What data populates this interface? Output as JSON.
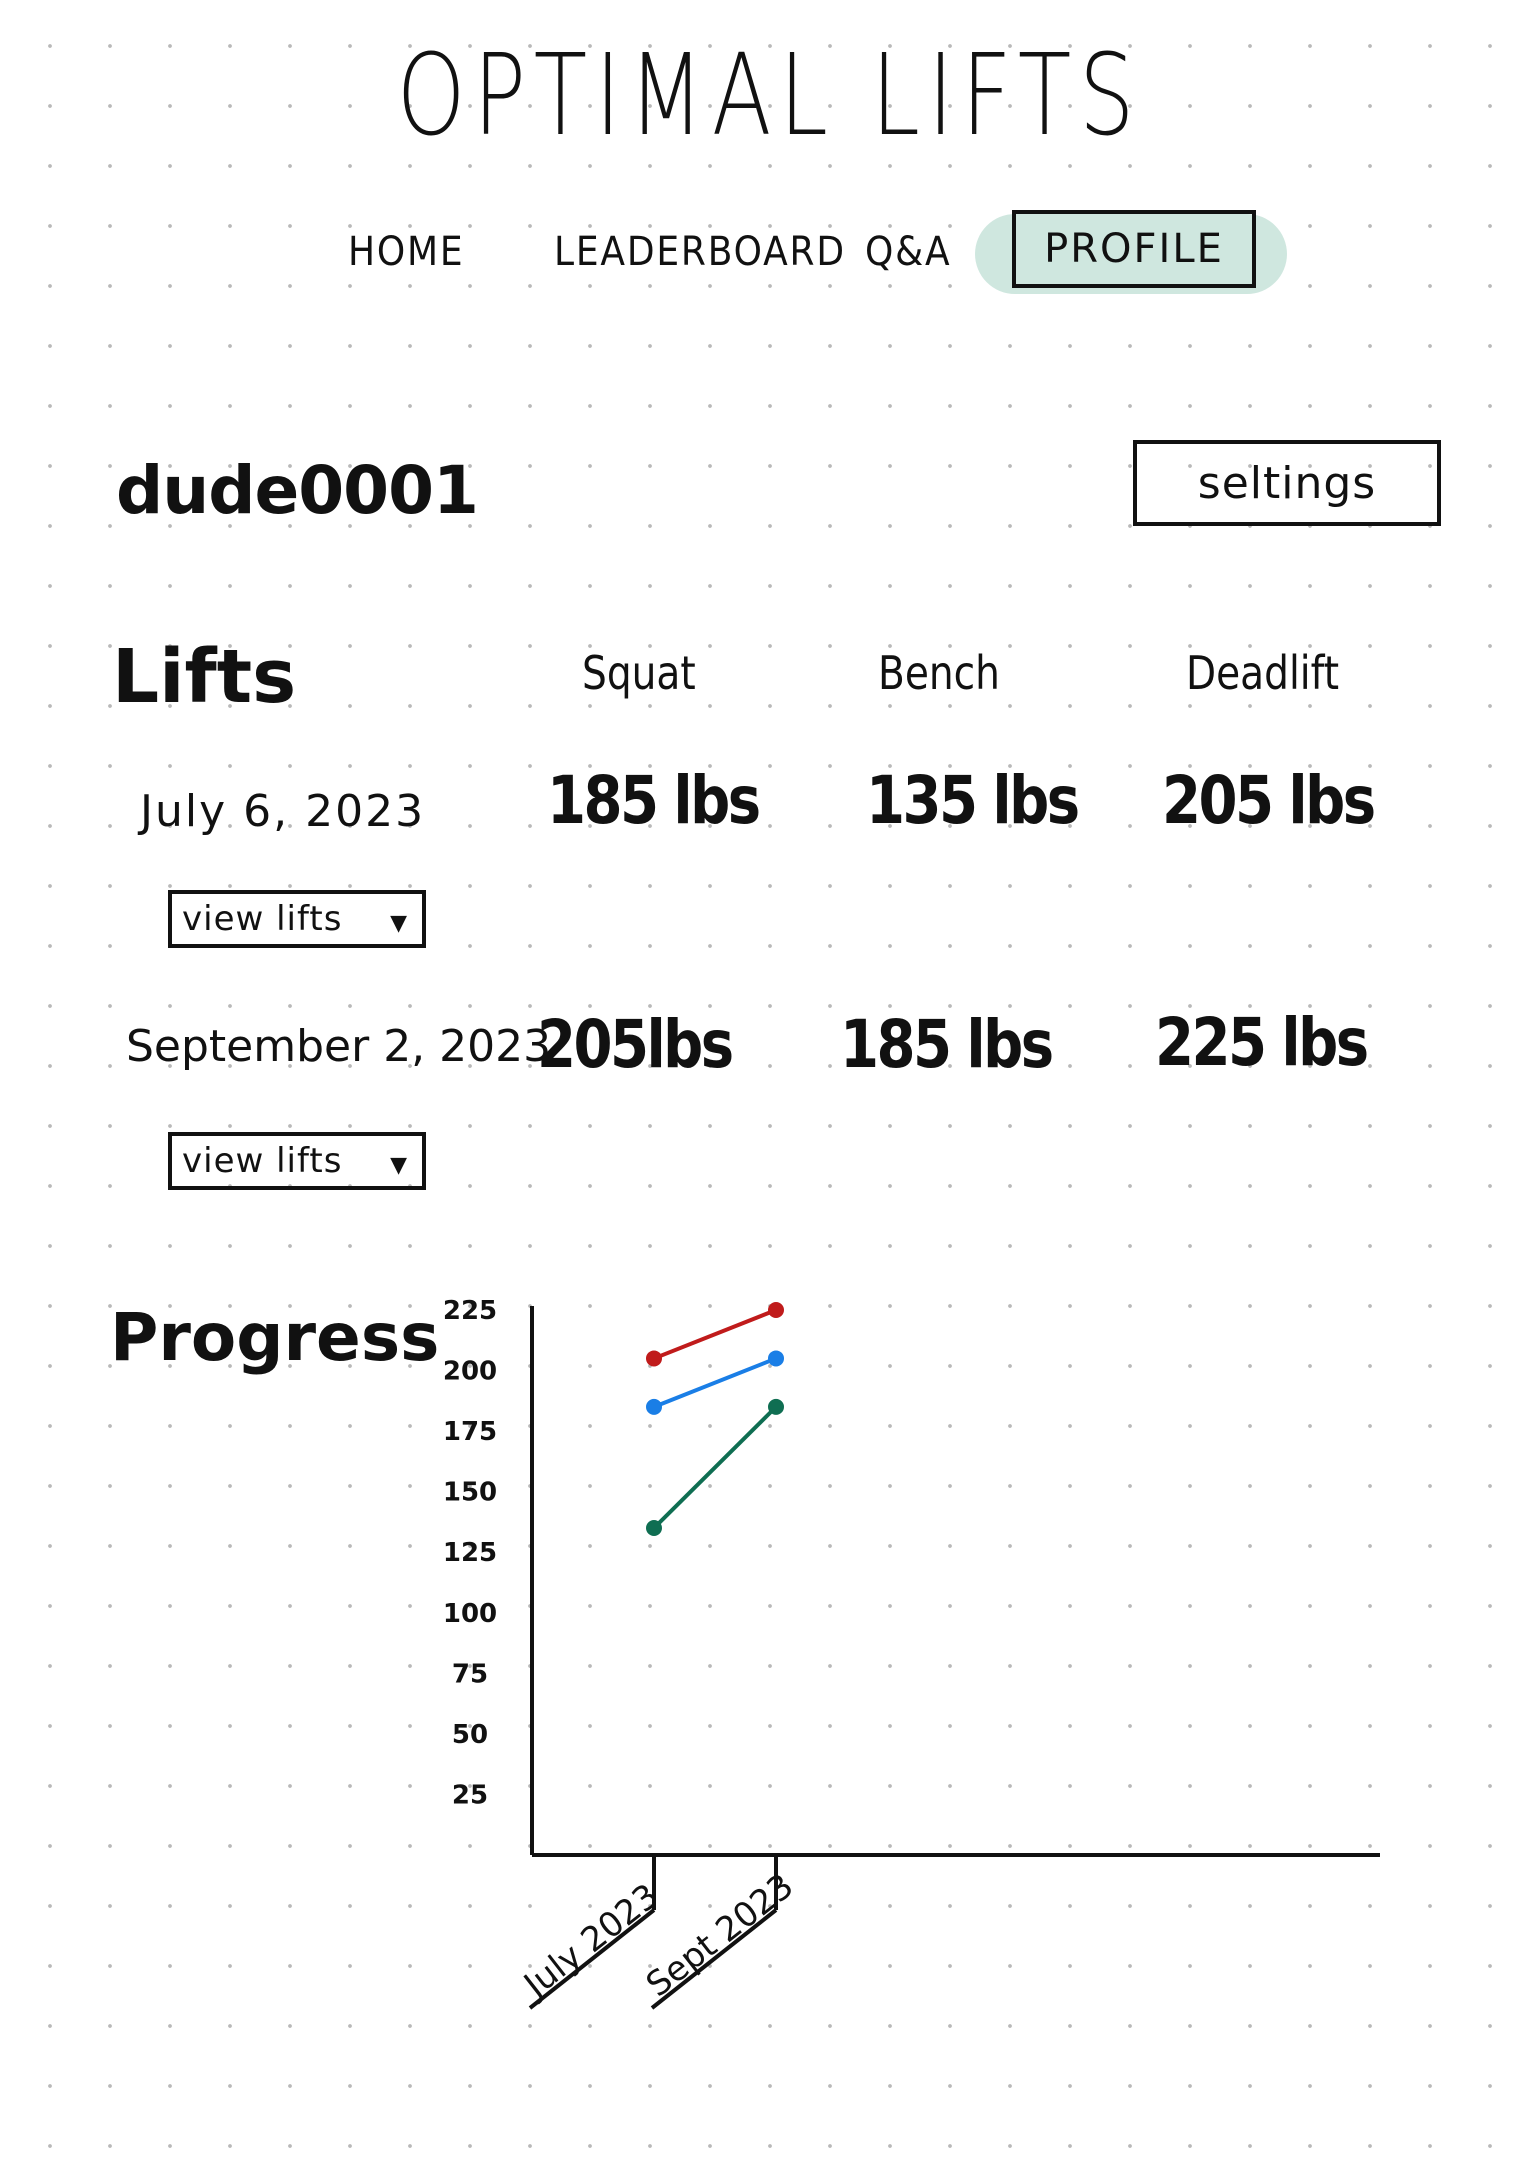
{
  "app": {
    "title": "OPTIMAL LIFTS"
  },
  "nav": {
    "items": [
      {
        "id": "home",
        "label": "HOME"
      },
      {
        "id": "leaderboard",
        "label": "LEADERBOARD"
      },
      {
        "id": "qa",
        "label": "Q&A"
      },
      {
        "id": "profile",
        "label": "PROFILE",
        "active": true
      }
    ],
    "active_color": "#cfe7df"
  },
  "profile": {
    "username": "dude0001",
    "settings_label": "seltings"
  },
  "lifts": {
    "heading": "Lifts",
    "columns": [
      "Squat",
      "Bench",
      "Deadlift"
    ],
    "entries": [
      {
        "date": "July 6, 2023",
        "squat": "185 lbs",
        "bench": "135 lbs",
        "deadlift": "205 lbs",
        "dropdown_label": "view lifts"
      },
      {
        "date": "September 2, 2023",
        "squat": "205lbs",
        "bench": "185 lbs",
        "deadlift": "225 lbs",
        "dropdown_label": "view lifts"
      }
    ]
  },
  "progress": {
    "heading": "Progress"
  },
  "chart_data": {
    "type": "line",
    "categories": [
      "July 2023",
      "Sept 2023"
    ],
    "yticks": [
      25,
      50,
      75,
      100,
      125,
      150,
      175,
      200,
      225
    ],
    "ylim": [
      0,
      225
    ],
    "series": [
      {
        "values": [
          205,
          225
        ],
        "color": "#c01b1b"
      },
      {
        "values": [
          185,
          205
        ],
        "color": "#1a7ee6"
      },
      {
        "values": [
          135,
          185
        ],
        "color": "#0f6e52"
      }
    ],
    "grid": false,
    "legend": "none"
  }
}
